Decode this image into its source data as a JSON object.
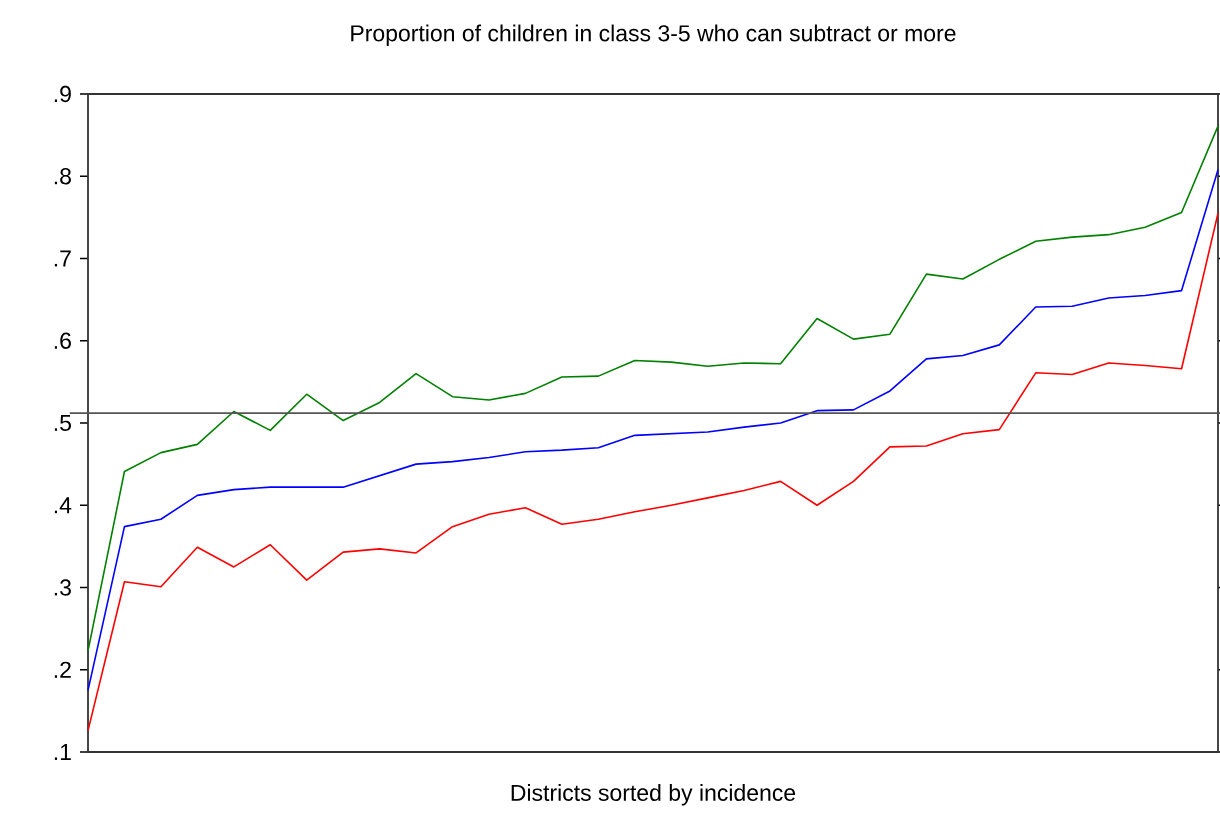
{
  "chart_data": {
    "type": "line",
    "title": "Proportion of children in class 3-5 who can subtract or more",
    "xlabel": "Districts sorted by incidence",
    "categories": [
      null,
      null,
      null,
      null,
      null,
      null,
      null,
      null,
      null,
      null,
      null,
      null,
      null,
      null,
      null,
      null,
      null,
      null,
      null,
      null,
      null,
      null,
      null,
      null,
      null,
      null,
      null,
      null,
      null,
      null,
      null,
      null
    ],
    "series": [
      {
        "color": "#008000",
        "values": [
          0.223,
          0.441,
          0.464,
          0.474,
          0.514,
          0.491,
          0.535,
          0.503,
          0.525,
          0.56,
          0.532,
          0.528,
          0.536,
          0.556,
          0.557,
          0.576,
          0.574,
          0.569,
          0.573,
          0.572,
          0.627,
          0.602,
          0.608,
          0.681,
          0.675,
          0.699,
          0.721,
          0.726,
          0.729,
          0.738,
          0.756,
          0.861
        ]
      },
      {
        "color": "#0000ff",
        "values": [
          0.175,
          0.374,
          0.383,
          0.412,
          0.419,
          0.422,
          0.422,
          0.422,
          0.436,
          0.45,
          0.453,
          0.458,
          0.465,
          0.467,
          0.47,
          0.485,
          0.487,
          0.489,
          0.495,
          0.5,
          0.515,
          0.516,
          0.539,
          0.578,
          0.582,
          0.595,
          0.641,
          0.642,
          0.652,
          0.655,
          0.661,
          0.808
        ]
      },
      {
        "color": "#ff0000",
        "values": [
          0.126,
          0.307,
          0.301,
          0.349,
          0.325,
          0.352,
          0.309,
          0.343,
          0.347,
          0.342,
          0.374,
          0.389,
          0.397,
          0.377,
          0.383,
          0.392,
          0.4,
          0.409,
          0.418,
          0.429,
          0.4,
          0.429,
          0.471,
          0.472,
          0.487,
          0.492,
          0.561,
          0.559,
          0.573,
          0.57,
          0.566,
          0.755
        ]
      }
    ],
    "ylim": [
      0.1,
      0.9
    ],
    "yticks": [
      {
        "value": 0.1,
        "label": ".1"
      },
      {
        "value": 0.2,
        "label": ".2"
      },
      {
        "value": 0.3,
        "label": ".3"
      },
      {
        "value": 0.4,
        "label": ".4"
      },
      {
        "value": 0.5,
        "label": ".5"
      },
      {
        "value": 0.6,
        "label": ".6"
      },
      {
        "value": 0.7,
        "label": ".7"
      },
      {
        "value": 0.8,
        "label": ".8"
      },
      {
        "value": 0.9,
        "label": ".9"
      }
    ],
    "ref_lines": [
      {
        "axis": "y",
        "value": 0.512,
        "color": "#555555"
      }
    ],
    "line_style": "solid"
  }
}
